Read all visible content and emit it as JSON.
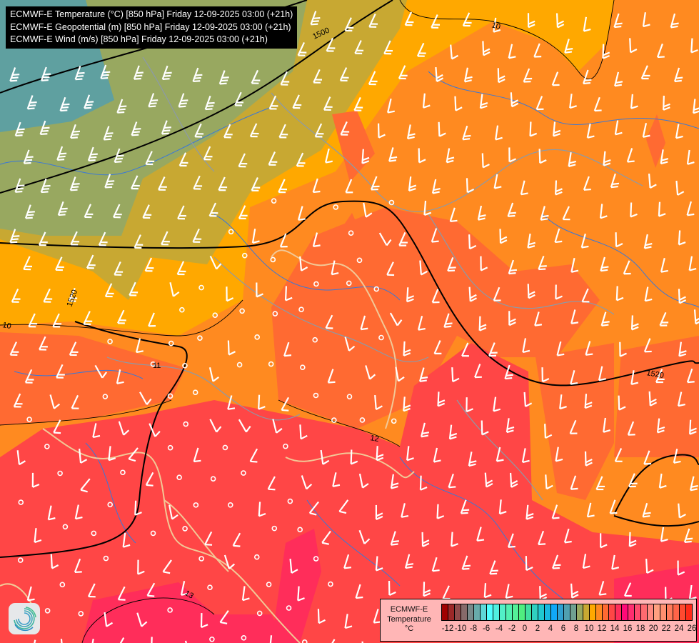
{
  "title_lines": [
    "ECMWF-E Temperature (°C) [850 hPa] Friday 12-09-2025 03:00 (+21h)",
    "ECMWF-E Geopotential (m) [850 hPa] Friday 12-09-2025 03:00 (+21h)",
    "ECMWF-E Wind (m/s) [850 hPa] Friday 12-09-2025 03:00 (+21h)"
  ],
  "legend": {
    "title_line1": "ECMWF-E",
    "title_line2": "Temperature",
    "unit": "°C",
    "labels": [
      "-12",
      "-10",
      "-8",
      "-6",
      "-4",
      "-2",
      "0",
      "2",
      "4",
      "6",
      "8",
      "10",
      "12",
      "14",
      "16",
      "18",
      "20",
      "22",
      "24",
      "26"
    ],
    "colors": [
      "#a00000",
      "#9c2828",
      "#8f4a4a",
      "#876a6a",
      "#78898a",
      "#68abab",
      "#5fd8d8",
      "#50ffff",
      "#50f0e0",
      "#52f0c8",
      "#52f0b0",
      "#54f098",
      "#50ee80",
      "#40e0a0",
      "#30d0c0",
      "#20c8d0",
      "#18b8e0",
      "#10a8f8",
      "#30a0d0",
      "#50a0b0",
      "#70a090",
      "#98a860",
      "#c8a832",
      "#ffa800",
      "#ff8a20",
      "#ff6a32",
      "#ff4646",
      "#ff2d5a",
      "#ff0a78",
      "#ff2d70",
      "#ff4a6e",
      "#ff6a70",
      "#ff8a80",
      "#ffa080",
      "#ff9070",
      "#ff7a5a",
      "#ff6448",
      "#ff4a30",
      "#ff2a18"
    ]
  },
  "contour_labels": {
    "geopotential": [
      "1500",
      "1520",
      "1520"
    ],
    "temperature": [
      "10",
      "10",
      "11",
      "12",
      "13"
    ]
  },
  "map_colors": {
    "t6": "#5fa0a0",
    "t8": "#98a860",
    "t10": "#c8a832",
    "t11": "#ffa800",
    "t12": "#ff8a20",
    "t13": "#ff6a32",
    "t14": "#ff4646",
    "t15": "#ff2d5a",
    "t16": "#ff1e78",
    "coast": "#f2c896",
    "river": "#3a78d8",
    "border": "#8c9aa8",
    "wind": "#ffffff"
  },
  "icons": {
    "logo": "ecmwf-swirl-logo",
    "wind": "wind-barb",
    "calm": "calm-circle"
  }
}
